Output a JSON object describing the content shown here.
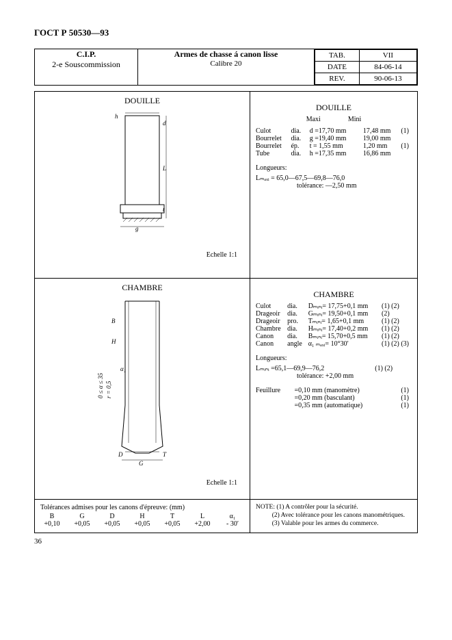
{
  "doc_id": "ГОСТ Р   50530—93",
  "page_number": "36",
  "header": {
    "left_line1": "C.I.P.",
    "left_line2": "2-e Souscommission",
    "mid_line1": "Armes de chasse á canon lisse",
    "mid_line2": "Calibre 20",
    "tab_label": "TAB.",
    "tab_value": "VII",
    "date_label": "DATE",
    "date_value": "84-06-14",
    "rev_label": "REV.",
    "rev_value": "90-06-13"
  },
  "douille": {
    "diagram_title": "DOUILLE",
    "scale": "Echelle 1:1",
    "data_title": "DOUILLE",
    "col_maxi": "Maxi",
    "col_mini": "Mini",
    "rows": [
      {
        "n": "Culot",
        "p": "dia.",
        "sym": "d =17,70 mm",
        "mini": "17,48 mm",
        "note": "(1)"
      },
      {
        "n": "Bourrelet",
        "p": "dia.",
        "sym": "g =19,40 mm",
        "mini": "19,00 mm",
        "note": ""
      },
      {
        "n": "Bourrelet",
        "p": "ép.",
        "sym": "t = 1,55 mm",
        "mini": "1,20 mm",
        "note": "(1)"
      },
      {
        "n": "Tube",
        "p": "dia.",
        "sym": "h =17,35 mm",
        "mini": "16,86 mm",
        "note": ""
      }
    ],
    "long_label": "Longueurs:",
    "lmax_line": "Lₘₐₓᵢ   = 65,0—67,5—69,8—76,0",
    "lmax_tol": "tolérance: —2,50 mm"
  },
  "chambre": {
    "diagram_title": "CHAMBRE",
    "scale": "Echelle 1:1",
    "data_title": "CHAMBRE",
    "rows": [
      {
        "n": "Culot",
        "p": "dia.",
        "sym": "Dₘᵢₙᵢ= 17,75+0,1 mm",
        "note": "(1) (2)"
      },
      {
        "n": "Drageoir",
        "p": "dia.",
        "sym": "Gₘᵢₙᵢ= 19,50+0,1 mm",
        "note": "(2)"
      },
      {
        "n": "Drageoir",
        "p": "pro.",
        "sym": "Tₘᵢₙᵢ= 1,65+0,1 mm",
        "note": "(1) (2)"
      },
      {
        "n": "Chambre",
        "p": "dia.",
        "sym": "Hₘᵢₙᵢ= 17,40+0,2 mm",
        "note": "(1) (2)"
      },
      {
        "n": "Canon",
        "p": "dia.",
        "sym": "Bₘᵢₙᵢ= 15,70+0,5 mm",
        "note": "(1) (2)"
      },
      {
        "n": "Canon",
        "p": "angle",
        "sym": "α₁ ₘₐₓᵢ= 10°30′",
        "note": "(1) (2) (3)"
      }
    ],
    "long_label": "Longueurs:",
    "lmin_line": "Lₘᵢₙᵢ   =65,1—69,9—76,2",
    "lmin_note": "(1) (2)",
    "lmin_tol": "tolérance: +2,00 mm",
    "feu_label": "Feuillure",
    "feu_rows": [
      {
        "v": "=0,10 mm (manomètre)",
        "n": "(1)"
      },
      {
        "v": "=0,20 mm (basculant)",
        "n": "(1)"
      },
      {
        "v": "=0,35 mm (automatique)",
        "n": "(1)"
      }
    ]
  },
  "footer": {
    "tol_title": "Tolérances admises pour les canons d'épreuve: (mm)",
    "tol_headers": [
      "B",
      "G",
      "D",
      "H",
      "T",
      "L",
      "α₁"
    ],
    "tol_values": [
      "+0,10",
      "+0,05",
      "+0,05",
      "+0,05",
      "+0,05",
      "+2,00",
      "- 30′"
    ],
    "note_lead": "NOTE:",
    "notes": [
      "(1) A contrôler pour la sécurité.",
      "(2) Avec tolérance pour les canons manométriques.",
      "(3) Valable pour les armes du commerce."
    ]
  }
}
